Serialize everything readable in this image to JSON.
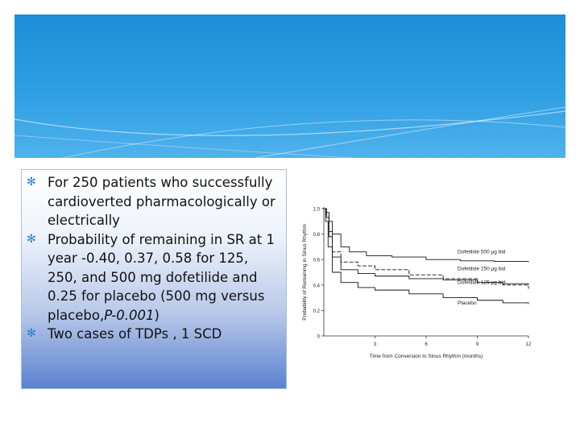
{
  "slide": {
    "bullets": [
      {
        "text": "For 250 patients who successfully cardioverted pharmacologically or electrically"
      },
      {
        "text": "Probability of remaining in SR at 1 year -0.40, 0.37, 0.58 for 125, 250, and 500 mg dofetilide and 0.25 for placebo (500 mg versus placebo,",
        "p_value": "P-0.001",
        "close": ")"
      },
      {
        "text": "Two cases of TDPs , 1 SCD"
      }
    ],
    "bullet_icon": "asterisk-icon",
    "accent_color": "#2a8fd9"
  },
  "chart_data": {
    "type": "line",
    "title": "",
    "xlabel": "Time from Conversion to Sinus Rhythm (months)",
    "ylabel": "Probability of Remaining in Sinus Rhythm",
    "xlim": [
      0,
      12
    ],
    "ylim": [
      0,
      1.0
    ],
    "x_ticks": [
      "3",
      "6",
      "9",
      "12"
    ],
    "y_ticks": [
      "0",
      "0.2",
      "0.4",
      "0.6",
      "0.8",
      "1.0"
    ],
    "grid": false,
    "series": [
      {
        "name": "Dofetilide 500 μg bid",
        "points": [
          [
            0,
            1.0
          ],
          [
            0.15,
            0.97
          ],
          [
            0.3,
            0.9
          ],
          [
            0.5,
            0.8
          ],
          [
            1,
            0.7
          ],
          [
            1.5,
            0.66
          ],
          [
            2.5,
            0.63
          ],
          [
            4,
            0.62
          ],
          [
            6,
            0.6
          ],
          [
            8,
            0.59
          ],
          [
            10,
            0.585
          ],
          [
            12,
            0.58
          ]
        ]
      },
      {
        "name": "Dofetilide 250 μg bid",
        "points": [
          [
            0,
            1.0
          ],
          [
            0.15,
            0.95
          ],
          [
            0.3,
            0.82
          ],
          [
            0.5,
            0.66
          ],
          [
            1,
            0.58
          ],
          [
            2,
            0.55
          ],
          [
            3,
            0.52
          ],
          [
            5,
            0.48
          ],
          [
            7,
            0.45
          ],
          [
            9,
            0.42
          ],
          [
            10.5,
            0.4
          ],
          [
            12,
            0.37
          ]
        ]
      },
      {
        "name": "Dofetilide 125 μg bid",
        "points": [
          [
            0,
            1.0
          ],
          [
            0.15,
            0.93
          ],
          [
            0.3,
            0.78
          ],
          [
            0.5,
            0.62
          ],
          [
            1,
            0.52
          ],
          [
            2,
            0.49
          ],
          [
            3,
            0.47
          ],
          [
            5,
            0.45
          ],
          [
            7,
            0.44
          ],
          [
            9,
            0.42
          ],
          [
            10.5,
            0.41
          ],
          [
            12,
            0.4
          ]
        ]
      },
      {
        "name": "Placebo",
        "points": [
          [
            0,
            1.0
          ],
          [
            0.1,
            0.9
          ],
          [
            0.25,
            0.7
          ],
          [
            0.5,
            0.5
          ],
          [
            1,
            0.42
          ],
          [
            2,
            0.38
          ],
          [
            3,
            0.36
          ],
          [
            5,
            0.33
          ],
          [
            7,
            0.3
          ],
          [
            9,
            0.28
          ],
          [
            10.5,
            0.26
          ],
          [
            12,
            0.25
          ]
        ]
      }
    ]
  }
}
